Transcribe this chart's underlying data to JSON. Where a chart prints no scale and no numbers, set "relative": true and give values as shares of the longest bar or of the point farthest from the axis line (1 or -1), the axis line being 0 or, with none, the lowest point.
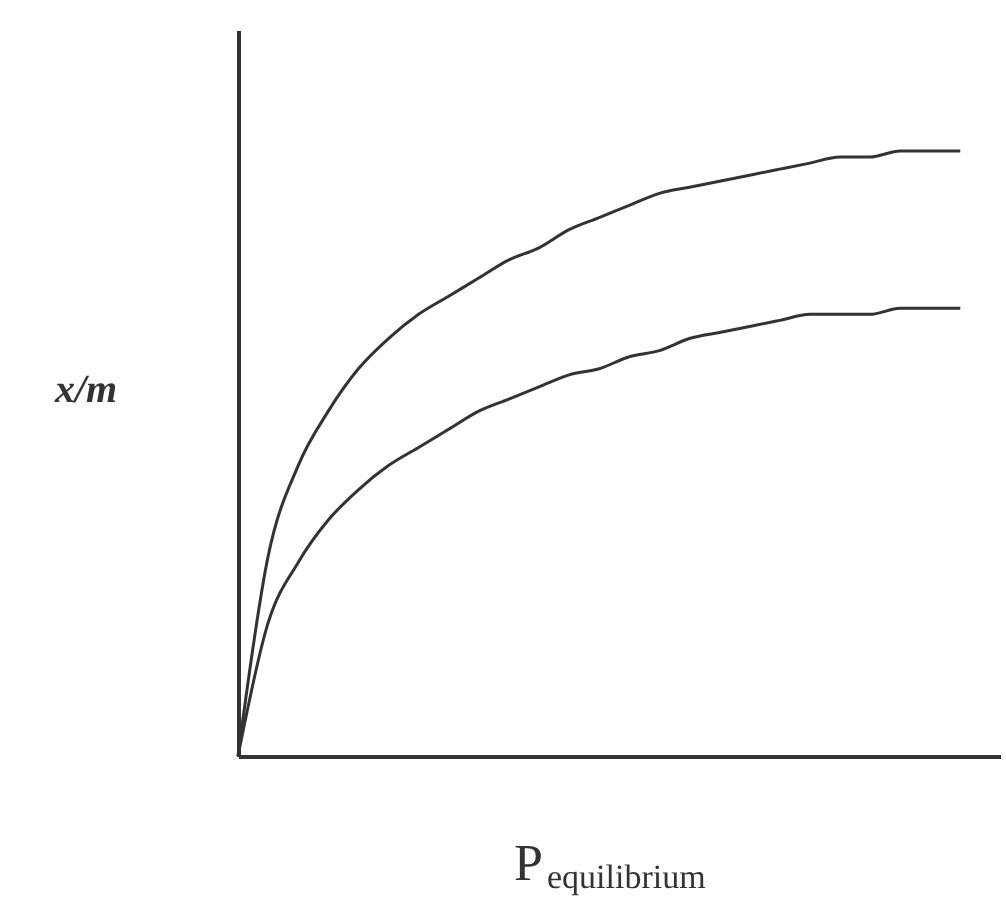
{
  "chart_data": {
    "type": "line",
    "relative": true,
    "xlabel": "P$_{equilibrium}$",
    "ylabel": "x/m",
    "categories": [
      null,
      null,
      null,
      null,
      null,
      null,
      null,
      null,
      null,
      null,
      null,
      null,
      null,
      null,
      null,
      null,
      null,
      null,
      null,
      null,
      null,
      null,
      null,
      null,
      null
    ],
    "series": [
      {
        "color": "#333333",
        "values": [
          0,
          0.33,
          0.48,
          0.57,
          0.64,
          0.69,
          0.73,
          0.76,
          0.79,
          0.82,
          0.84,
          0.87,
          0.89,
          0.91,
          0.93,
          0.94,
          0.95,
          0.96,
          0.97,
          0.98,
          0.99,
          0.99,
          1,
          1,
          1
        ]
      },
      {
        "color": "#333333",
        "values": [
          0,
          0.22,
          0.32,
          0.39,
          0.44,
          0.48,
          0.51,
          0.54,
          0.57,
          0.59,
          0.61,
          0.63,
          0.64,
          0.66,
          0.67,
          0.69,
          0.7,
          0.71,
          0.72,
          0.73,
          0.73,
          0.73,
          0.74,
          0.74,
          0.74
        ]
      }
    ],
    "grid": false,
    "marker": "none",
    "line_style": "solid"
  }
}
